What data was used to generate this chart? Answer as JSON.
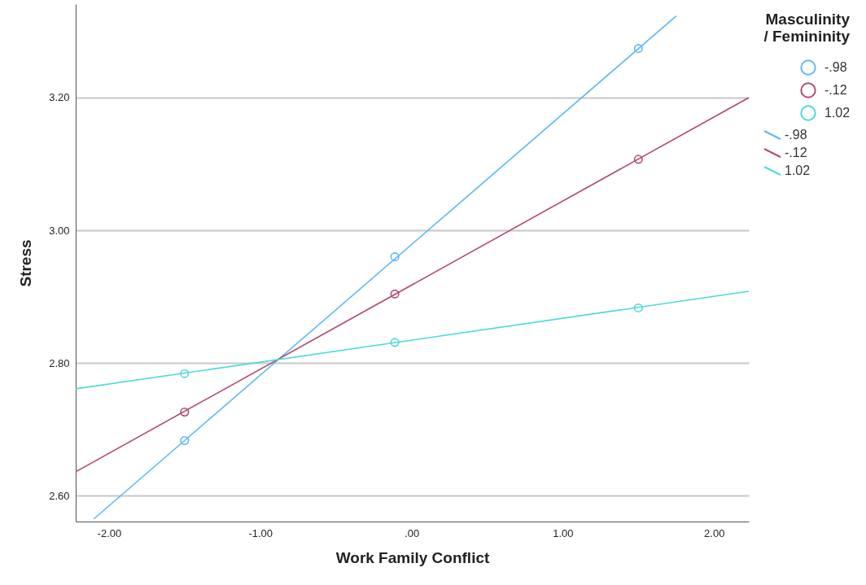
{
  "chart_data": {
    "type": "scatter",
    "xlabel": "Work Family Conflict",
    "ylabel": "Stress",
    "legend_title": "Masculinity / Femininity",
    "legend": "right",
    "grid": "y",
    "marker": "circle",
    "xlim": [
      -2.22,
      2.23
    ],
    "ylim": [
      2.561,
      3.341
    ],
    "xticks": [
      {
        "value": -2,
        "label": "-2.00"
      },
      {
        "value": -1,
        "label": "-1.00"
      },
      {
        "value": 0,
        "label": ".00"
      },
      {
        "value": 1,
        "label": "1.00"
      },
      {
        "value": 2,
        "label": "2.00"
      }
    ],
    "yticks": [
      {
        "value": 2.6,
        "label": "2.60"
      },
      {
        "value": 2.8,
        "label": "2.80"
      },
      {
        "value": 3.0,
        "label": "3.00"
      },
      {
        "value": 3.2,
        "label": "3.20"
      }
    ],
    "series": [
      {
        "name": "-.98",
        "color": "#5cb8f8",
        "x": [
          -1.5,
          -0.11,
          1.5
        ],
        "values": [
          2.683,
          2.96,
          3.274
        ]
      },
      {
        "name": "-.12",
        "color": "#b04a72",
        "x": [
          -1.5,
          -0.11,
          1.5
        ],
        "values": [
          2.726,
          2.904,
          3.107
        ]
      },
      {
        "name": "1.02",
        "color": "#4dd9d8",
        "x": [
          -1.5,
          -0.11,
          1.5
        ],
        "values": [
          2.784,
          2.831,
          2.883
        ]
      },
      {
        "name": "-.98",
        "type": "line",
        "marker": "none",
        "color": "#5cb8f8",
        "x": [
          -2.1,
          1.75
        ],
        "values": [
          2.565,
          3.323
        ]
      },
      {
        "name": "-.12",
        "type": "line",
        "marker": "none",
        "color": "#b04a72",
        "x": [
          -2.22,
          2.23
        ],
        "values": [
          2.636,
          3.2
        ]
      },
      {
        "name": "1.02",
        "type": "line",
        "marker": "none",
        "color": "#4dd9d8",
        "x": [
          -2.22,
          2.23
        ],
        "values": [
          2.761,
          2.908
        ]
      }
    ]
  }
}
